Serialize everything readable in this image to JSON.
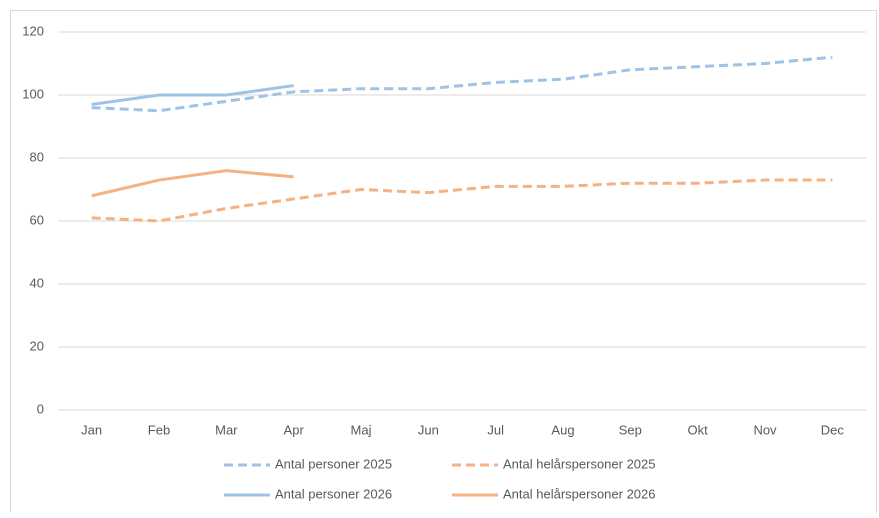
{
  "chart_data": {
    "type": "line",
    "categories": [
      "Jan",
      "Feb",
      "Mar",
      "Apr",
      "Maj",
      "Jun",
      "Jul",
      "Aug",
      "Sep",
      "Okt",
      "Nov",
      "Dec"
    ],
    "series": [
      {
        "name": "Antal personer 2025",
        "color": "#9dc3e6",
        "line_style": "dashed",
        "values": [
          96,
          95,
          98,
          101,
          102,
          102,
          104,
          105,
          108,
          109,
          110,
          112
        ]
      },
      {
        "name": "Antal helårspersoner 2025",
        "color": "#f4b183",
        "line_style": "dashed",
        "values": [
          61,
          60,
          64,
          67,
          70,
          69,
          71,
          71,
          72,
          72,
          73,
          73
        ]
      },
      {
        "name": "Antal personer 2026",
        "color": "#9dc3e6",
        "line_style": "solid",
        "values": [
          97,
          100,
          100,
          103,
          null,
          null,
          null,
          null,
          null,
          null,
          null,
          null
        ]
      },
      {
        "name": "Antal helårspersoner 2026",
        "color": "#f4b183",
        "line_style": "solid",
        "values": [
          68,
          73,
          76,
          74,
          null,
          null,
          null,
          null,
          null,
          null,
          null,
          null
        ]
      }
    ],
    "ylim": [
      0,
      120
    ],
    "yticks": [
      0,
      20,
      40,
      60,
      80,
      100,
      120
    ],
    "grid": true,
    "legend": "bottom"
  }
}
